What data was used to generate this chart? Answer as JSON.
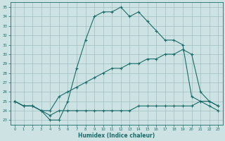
{
  "xlabel": "Humidex (Indice chaleur)",
  "xlim": [
    -0.5,
    23.5
  ],
  "ylim": [
    22.5,
    35.5
  ],
  "yticks": [
    23,
    24,
    25,
    26,
    27,
    28,
    29,
    30,
    31,
    32,
    33,
    34,
    35
  ],
  "xticks": [
    0,
    1,
    2,
    3,
    4,
    5,
    6,
    7,
    8,
    9,
    10,
    11,
    12,
    13,
    14,
    15,
    16,
    17,
    18,
    19,
    20,
    21,
    22,
    23
  ],
  "bg_color": "#cde3e3",
  "grid_color": "#a0bfbf",
  "line_color": "#1a6b6b",
  "lines": [
    {
      "x": [
        0,
        1,
        2,
        3,
        4,
        5,
        6,
        7,
        8,
        9,
        10,
        11,
        12,
        13,
        14,
        15,
        16,
        17,
        18,
        19,
        20,
        21,
        22,
        23
      ],
      "y": [
        25,
        24.5,
        24.5,
        24,
        23,
        23,
        25,
        28.5,
        31.5,
        34,
        34.5,
        34.5,
        35,
        34,
        34.5,
        33.5,
        32.5,
        31.5,
        31.5,
        31,
        25.5,
        25,
        24.5,
        24
      ]
    },
    {
      "x": [
        0,
        1,
        2,
        3,
        4,
        5,
        6,
        7,
        8,
        9,
        10,
        11,
        12,
        13,
        14,
        15,
        16,
        17,
        18,
        19,
        20,
        21,
        22,
        23
      ],
      "y": [
        25,
        24.5,
        24.5,
        24,
        24,
        25.5,
        26,
        26.5,
        27,
        27.5,
        28,
        28.5,
        28.5,
        29,
        29,
        29.5,
        29.5,
        30,
        30,
        30.5,
        30,
        26,
        25,
        24.5
      ]
    },
    {
      "x": [
        0,
        1,
        2,
        3,
        4,
        5,
        6,
        7,
        8,
        9,
        10,
        11,
        12,
        13,
        14,
        15,
        16,
        17,
        18,
        19,
        20,
        21,
        22,
        23
      ],
      "y": [
        25,
        24.5,
        24.5,
        24,
        23.5,
        24,
        24,
        24,
        24,
        24,
        24,
        24,
        24,
        24,
        24.5,
        24.5,
        24.5,
        24.5,
        24.5,
        24.5,
        24.5,
        25,
        25,
        24.5
      ]
    }
  ]
}
